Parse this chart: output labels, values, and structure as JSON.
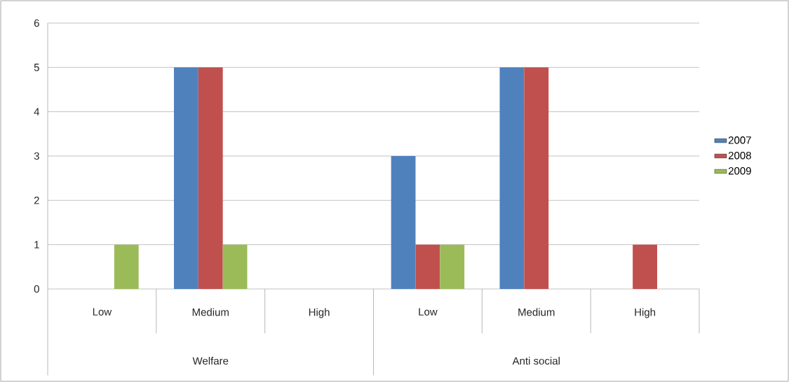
{
  "chart_data": {
    "type": "bar",
    "categories": [
      "Low",
      "Medium",
      "High",
      "Low",
      "Medium",
      "High"
    ],
    "series": [
      {
        "name": "2007",
        "color": "#4f81bd",
        "values": [
          0,
          5,
          0,
          3,
          5,
          0
        ]
      },
      {
        "name": "2008",
        "color": "#c0504d",
        "values": [
          0,
          5,
          0,
          1,
          5,
          1
        ]
      },
      {
        "name": "2009",
        "color": "#9bbb59",
        "values": [
          1,
          1,
          0,
          1,
          0,
          0
        ]
      }
    ],
    "annotations": [
      "Welfare",
      "Anti social"
    ],
    "ylim": [
      0,
      6
    ],
    "yticks": [
      0,
      1,
      2,
      3,
      4,
      5,
      6
    ],
    "grid": "y",
    "legend": "right"
  }
}
